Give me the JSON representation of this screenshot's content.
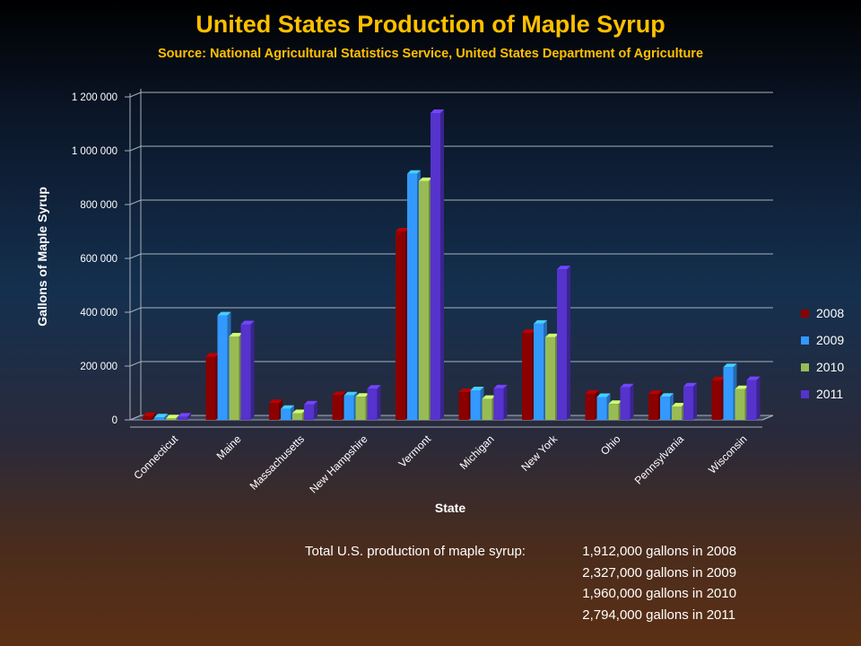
{
  "chart_data": {
    "type": "bar",
    "title": "United States Production of Maple Syrup",
    "subtitle": "Source: National Agricultural Statistics Service, United States Department of Agriculture",
    "xlabel": "State",
    "ylabel": "Gallons of Maple Syrup",
    "ylim": [
      0,
      1200000
    ],
    "yticks": [
      0,
      200000,
      400000,
      600000,
      800000,
      1000000,
      1200000
    ],
    "ytick_labels": [
      "0",
      "200 000",
      "400 000",
      "600 000",
      "800 000",
      "1 000 000",
      "1 200 000"
    ],
    "grid": true,
    "legend_position": "right",
    "categories": [
      "Connecticut",
      "Maine",
      "Massachusetts",
      "New Hampshire",
      "Vermont",
      "Michigan",
      "New York",
      "Ohio",
      "Pennsylvania",
      "Wisconsin"
    ],
    "series": [
      {
        "name": "2008",
        "color": "#8b0000",
        "values": [
          14000,
          235000,
          62000,
          92000,
          700000,
          103000,
          323000,
          97000,
          96000,
          147000
        ]
      },
      {
        "name": "2009",
        "color": "#3399ff",
        "values": [
          9000,
          388000,
          41000,
          91000,
          914000,
          110000,
          357000,
          85000,
          86000,
          196000
        ]
      },
      {
        "name": "2010",
        "color": "#99bb55",
        "values": [
          6000,
          310000,
          25000,
          86000,
          887000,
          78000,
          307000,
          59000,
          50000,
          114000
        ]
      },
      {
        "name": "2011",
        "color": "#5533cc",
        "values": [
          12000,
          355000,
          57000,
          116000,
          1140000,
          117000,
          559000,
          121000,
          124000,
          148000
        ]
      }
    ]
  },
  "footer": {
    "label": "Total U.S. production of maple syrup:",
    "lines": [
      {
        "amount": "1,912,000",
        "text": "gallons in 2008"
      },
      {
        "amount": "2,327,000",
        "text": "gallons in 2009"
      },
      {
        "amount": "1,960,000",
        "text": "gallons in 2010"
      },
      {
        "amount": "2,794,000",
        "text": "gallons in 2011"
      }
    ]
  }
}
